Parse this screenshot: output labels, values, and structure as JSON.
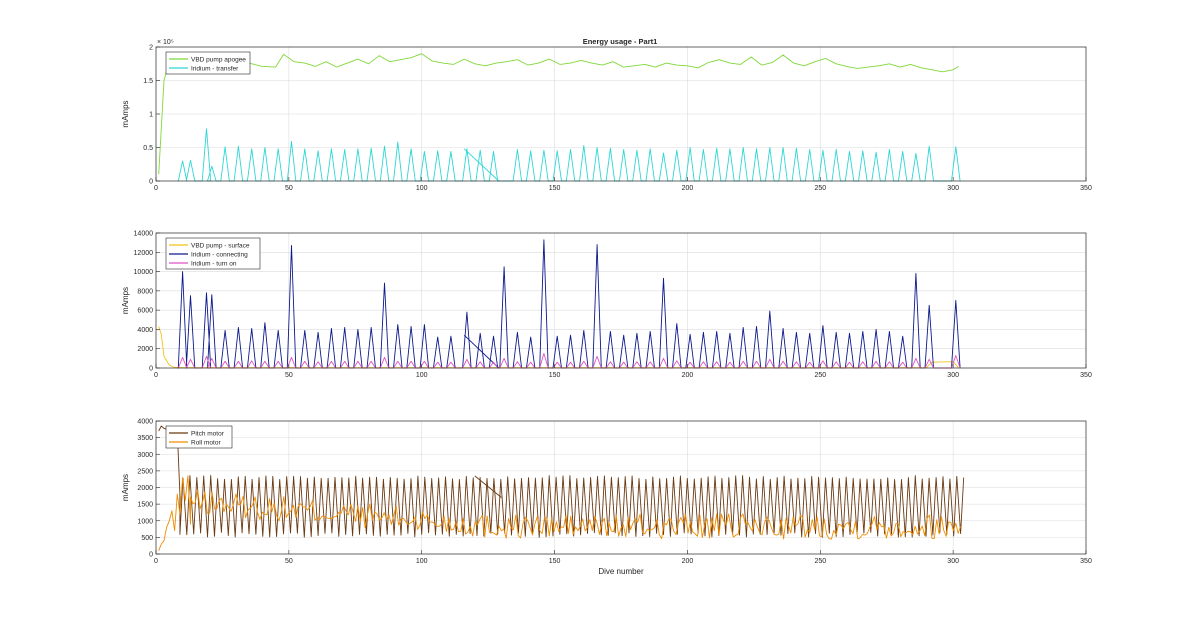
{
  "figure": {
    "title": "Energy usage - Part1"
  },
  "colors": {
    "vbd_apogee": "#7fd83a",
    "iridium_transfer": "#2fd6d6",
    "vbd_surface": "#f2c418",
    "iridium_connecting": "#0d1a8c",
    "iridium_turnon": "#e052c8",
    "pitch_motor": "#6b3a12",
    "roll_motor": "#f08c00",
    "grid": "#dcdcdc",
    "axis": "#262626"
  },
  "chart_data": [
    {
      "type": "line",
      "title": "Energy usage - Part1",
      "xlabel": "",
      "ylabel": "mAmps",
      "xlim": [
        0,
        350
      ],
      "ylim": [
        0,
        200000
      ],
      "xticks": [
        0,
        50,
        100,
        150,
        200,
        250,
        300,
        350
      ],
      "yticks": [
        0,
        0.5,
        1,
        1.5,
        2
      ],
      "y_exponent_label": "× 10⁵",
      "grid": true,
      "legend": "top-left",
      "series": [
        {
          "name": "VBD pump apogee",
          "color_key": "vbd_apogee",
          "x": [
            1,
            3,
            5,
            8,
            12,
            16,
            20,
            25,
            30,
            35,
            40,
            45,
            48,
            52,
            56,
            60,
            64,
            68,
            72,
            76,
            80,
            84,
            88,
            92,
            96,
            100,
            104,
            108,
            112,
            116,
            120,
            124,
            128,
            132,
            136,
            140,
            144,
            148,
            152,
            156,
            160,
            164,
            168,
            172,
            176,
            180,
            184,
            188,
            192,
            196,
            200,
            204,
            208,
            212,
            216,
            220,
            224,
            228,
            232,
            236,
            240,
            244,
            248,
            252,
            256,
            260,
            264,
            268,
            272,
            276,
            280,
            284,
            288,
            292,
            296,
            300,
            302
          ],
          "y": [
            10000,
            150000,
            178000,
            174000,
            182000,
            176000,
            185000,
            173000,
            168000,
            176000,
            171000,
            170000,
            189000,
            178000,
            176000,
            171000,
            178000,
            170000,
            176000,
            182000,
            175000,
            187000,
            178000,
            181000,
            184000,
            190000,
            179000,
            176000,
            174000,
            182000,
            175000,
            172000,
            176000,
            178000,
            181000,
            173000,
            176000,
            182000,
            174000,
            176000,
            180000,
            176000,
            173000,
            178000,
            170000,
            172000,
            174000,
            170000,
            176000,
            173000,
            172000,
            169000,
            177000,
            181000,
            176000,
            174000,
            185000,
            173000,
            177000,
            188000,
            176000,
            172000,
            178000,
            183000,
            175000,
            171000,
            168000,
            170000,
            172000,
            175000,
            170000,
            174000,
            169000,
            166000,
            163000,
            166000,
            171000
          ]
        },
        {
          "name": "Iridium - transfer",
          "color_key": "iridium_transfer",
          "spike_x": [
            10,
            13,
            19,
            21,
            26,
            31,
            36,
            41,
            46,
            51,
            56,
            61,
            66,
            71,
            76,
            81,
            86,
            91,
            96,
            101,
            106,
            111,
            117,
            122,
            127,
            136,
            141,
            146,
            151,
            156,
            161,
            166,
            171,
            176,
            181,
            186,
            191,
            196,
            201,
            206,
            211,
            216,
            221,
            226,
            231,
            236,
            241,
            246,
            251,
            256,
            261,
            266,
            271,
            276,
            281,
            286,
            291,
            301
          ],
          "spike_y": [
            30000,
            31000,
            78000,
            22000,
            51000,
            52000,
            48000,
            50000,
            48000,
            59000,
            48000,
            45000,
            48000,
            47000,
            48000,
            49000,
            52000,
            58000,
            48000,
            44000,
            45000,
            44000,
            48000,
            46000,
            44000,
            47000,
            45000,
            46000,
            45000,
            47000,
            53000,
            50000,
            49000,
            47000,
            46000,
            48000,
            42000,
            46000,
            50000,
            47000,
            49000,
            48000,
            50000,
            48000,
            50000,
            50000,
            49000,
            47000,
            46000,
            47000,
            44000,
            45000,
            43000,
            47000,
            44000,
            41000,
            52000,
            51000
          ],
          "extra_segment": {
            "x": [
              116,
              129
            ],
            "y": [
              48000,
              0
            ]
          }
        }
      ]
    },
    {
      "type": "line",
      "xlabel": "",
      "ylabel": "mAmps",
      "xlim": [
        0,
        350
      ],
      "ylim": [
        0,
        14000
      ],
      "xticks": [
        0,
        50,
        100,
        150,
        200,
        250,
        300,
        350
      ],
      "yticks": [
        0,
        2000,
        4000,
        6000,
        8000,
        10000,
        12000,
        14000
      ],
      "grid": true,
      "legend": "top-left",
      "series": [
        {
          "name": "VBD pump - surface",
          "color_key": "vbd_surface",
          "x": [
            1,
            2,
            3,
            5,
            7,
            10,
            280,
            290,
            292,
            300,
            302
          ],
          "y": [
            4300,
            3500,
            1200,
            300,
            50,
            30,
            30,
            40,
            600,
            650,
            40
          ]
        },
        {
          "name": "Iridium - connecting",
          "color_key": "iridium_connecting",
          "spike_x": [
            10,
            13,
            19,
            21,
            26,
            31,
            36,
            41,
            46,
            51,
            56,
            61,
            66,
            71,
            76,
            81,
            86,
            91,
            96,
            101,
            106,
            111,
            117,
            122,
            127,
            131,
            136,
            141,
            146,
            151,
            156,
            161,
            166,
            171,
            176,
            181,
            186,
            191,
            196,
            201,
            206,
            211,
            216,
            221,
            226,
            231,
            236,
            241,
            246,
            251,
            256,
            261,
            266,
            271,
            276,
            281,
            286,
            291,
            301
          ],
          "spike_y": [
            10000,
            7500,
            7800,
            7600,
            3900,
            4200,
            4100,
            4700,
            3900,
            12700,
            3900,
            3700,
            4100,
            4200,
            4000,
            4200,
            8800,
            4500,
            4300,
            4500,
            3200,
            3300,
            5800,
            3600,
            3300,
            10500,
            3700,
            3200,
            13300,
            3300,
            3400,
            3900,
            12800,
            3800,
            3400,
            3600,
            3800,
            9300,
            4600,
            3500,
            3700,
            3800,
            3600,
            4200,
            4300,
            5900,
            4100,
            3700,
            3600,
            4400,
            3700,
            3600,
            3800,
            4000,
            3800,
            3300,
            9800,
            6500,
            7000
          ],
          "extra_segment": {
            "x": [
              116,
              129
            ],
            "y": [
              3400,
              0
            ]
          }
        },
        {
          "name": "Iridium - turn on",
          "color_key": "iridium_turnon",
          "spike_x": [
            10,
            13,
            19,
            21,
            26,
            31,
            36,
            41,
            46,
            51,
            56,
            61,
            66,
            71,
            76,
            81,
            86,
            91,
            96,
            101,
            106,
            111,
            117,
            122,
            127,
            131,
            136,
            141,
            146,
            151,
            156,
            161,
            166,
            171,
            176,
            181,
            186,
            191,
            196,
            201,
            206,
            211,
            216,
            221,
            226,
            231,
            236,
            241,
            246,
            251,
            256,
            261,
            266,
            271,
            276,
            281,
            286,
            291,
            301
          ],
          "spike_y": [
            1100,
            900,
            1200,
            1000,
            700,
            700,
            750,
            700,
            700,
            1100,
            700,
            650,
            700,
            700,
            700,
            700,
            1100,
            700,
            700,
            700,
            600,
            600,
            900,
            650,
            600,
            1000,
            650,
            600,
            1500,
            600,
            600,
            700,
            1200,
            650,
            600,
            650,
            650,
            1000,
            750,
            600,
            650,
            650,
            600,
            700,
            700,
            900,
            700,
            650,
            600,
            750,
            650,
            600,
            650,
            700,
            650,
            600,
            1000,
            900,
            1300
          ]
        }
      ]
    },
    {
      "type": "line",
      "xlabel": "Dive number",
      "ylabel": "mAmps",
      "xlim": [
        0,
        350
      ],
      "ylim": [
        0,
        4000
      ],
      "xticks": [
        0,
        50,
        100,
        150,
        200,
        250,
        300,
        350
      ],
      "yticks": [
        0,
        500,
        1000,
        1500,
        2000,
        2500,
        3000,
        3500,
        4000
      ],
      "grid": true,
      "legend": "top-left",
      "series": [
        {
          "name": "Pitch motor",
          "color_key": "pitch_motor",
          "lead_x": [
            1,
            2,
            3,
            4,
            6,
            8,
            9
          ],
          "lead_y": [
            3700,
            3850,
            3780,
            3750,
            3780,
            3700,
            1800
          ],
          "osc_start": 9,
          "osc_end": 303,
          "osc_period": 2.6,
          "osc_high": 2300,
          "osc_low": 500,
          "extra_segment": {
            "x": [
              120,
              130
            ],
            "y": [
              2350,
              1700
            ]
          }
        },
        {
          "name": "Roll motor",
          "color_key": "roll_motor",
          "lead_x": [
            1,
            2,
            3,
            4,
            5,
            6,
            7,
            8,
            9,
            10,
            11,
            12,
            13
          ],
          "lead_y": [
            100,
            300,
            400,
            800,
            1000,
            1300,
            700,
            1800,
            1200,
            2300,
            1600,
            2350,
            900
          ],
          "noise_start": 13,
          "noise_end": 303,
          "trend_start": 1500,
          "trend_end": 750,
          "noise_amp": 380
        }
      ]
    }
  ]
}
